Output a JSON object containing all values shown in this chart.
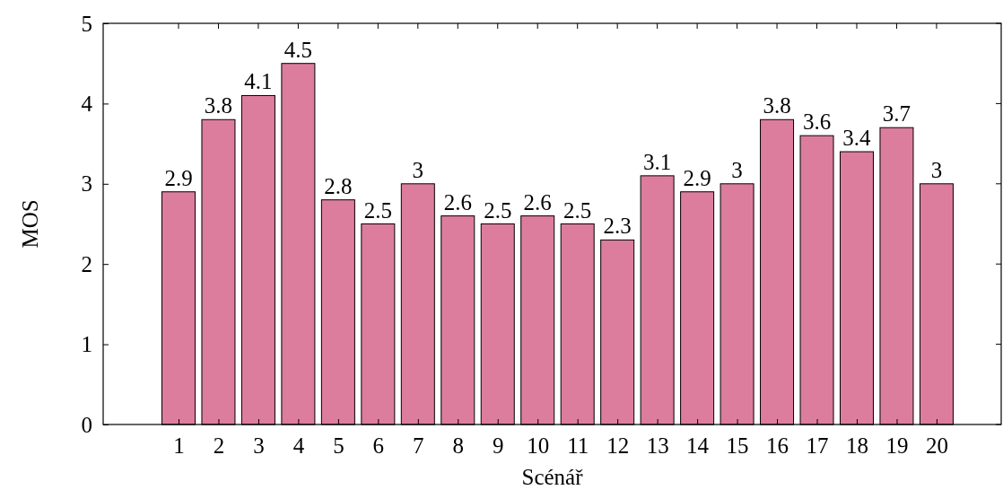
{
  "chart_data": {
    "type": "bar",
    "xlabel": "Scénář",
    "ylabel": "MOS",
    "categories": [
      "1",
      "2",
      "3",
      "4",
      "5",
      "6",
      "7",
      "8",
      "9",
      "10",
      "11",
      "12",
      "13",
      "14",
      "15",
      "16",
      "17",
      "18",
      "19",
      "20"
    ],
    "values": [
      2.9,
      3.8,
      4.1,
      4.5,
      2.8,
      2.5,
      3,
      2.6,
      2.5,
      2.6,
      2.5,
      2.3,
      3.1,
      2.9,
      3,
      3.8,
      3.6,
      3.4,
      3.7,
      3
    ],
    "color": "#dd7d9e",
    "ylim": [
      0,
      5
    ],
    "yticks": [
      0,
      1,
      2,
      3,
      4,
      5
    ],
    "data_labels": true,
    "grid": false
  }
}
